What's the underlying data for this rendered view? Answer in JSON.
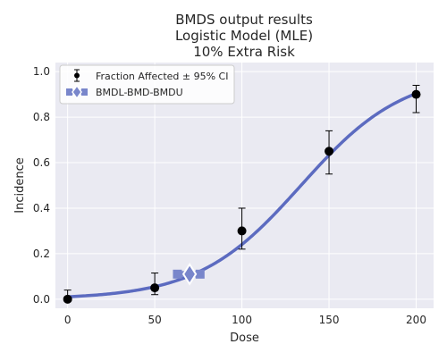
{
  "chart_data": {
    "type": "scatter",
    "title_lines": [
      "BMDS output results",
      "Logistic Model (MLE)",
      "10% Extra Risk"
    ],
    "xlabel": "Dose",
    "ylabel": "Incidence",
    "xlim": [
      -7,
      210
    ],
    "ylim": [
      -0.04,
      1.04
    ],
    "xticks": [
      0,
      50,
      100,
      150,
      200
    ],
    "yticks": [
      0.0,
      0.2,
      0.4,
      0.6,
      0.8,
      1.0
    ],
    "xtick_labels": [
      "0",
      "50",
      "100",
      "150",
      "200"
    ],
    "ytick_labels": [
      "0.0",
      "0.2",
      "0.4",
      "0.6",
      "0.8",
      "1.0"
    ],
    "grid": true,
    "legend_position": "top-left",
    "legend": {
      "observed_label": "Fraction Affected ± 95% CI",
      "bmd_label": "BMDL-BMD-BMDU"
    },
    "observed": [
      {
        "dose": 0,
        "incidence": 0.0,
        "ci_low": 0.0,
        "ci_high": 0.04
      },
      {
        "dose": 50,
        "incidence": 0.05,
        "ci_low": 0.02,
        "ci_high": 0.115
      },
      {
        "dose": 100,
        "incidence": 0.3,
        "ci_low": 0.22,
        "ci_high": 0.4
      },
      {
        "dose": 150,
        "incidence": 0.65,
        "ci_low": 0.55,
        "ci_high": 0.74
      },
      {
        "dose": 200,
        "incidence": 0.9,
        "ci_low": 0.82,
        "ci_high": 0.94
      }
    ],
    "model_curve": {
      "name": "Logistic",
      "a": -4.54,
      "b": 0.0339
    },
    "bmd": {
      "bmdl": 63,
      "bmd": 70,
      "bmdu": 76,
      "response": 0.11
    },
    "colors": {
      "curve": "#5c6bc0",
      "bmd_marker": "#7986cb",
      "points": "#000000",
      "plot_background": "#eaeaf2",
      "grid": "#ffffff"
    }
  }
}
